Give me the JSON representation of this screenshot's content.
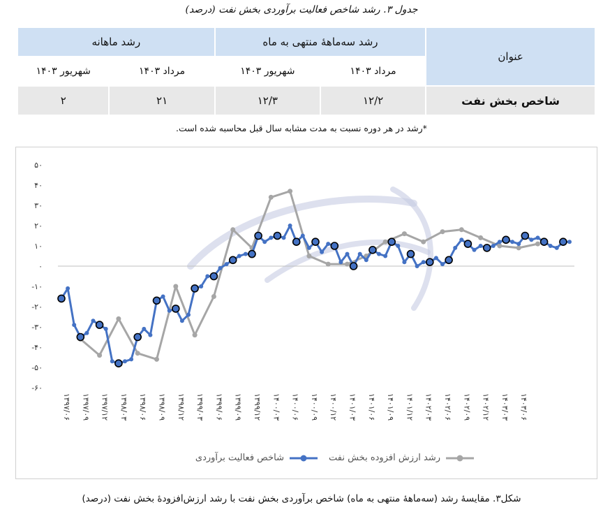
{
  "table": {
    "caption": "جدول ۳. رشد شاخص فعالیت برآوردی بخش نفت (درصد)",
    "col_title": "عنوان",
    "group1": "رشد سه‌ماههٔ منتهی به ماه",
    "group2": "رشد ماهانه",
    "sub": [
      "مرداد ۱۴۰۳",
      "شهریور ۱۴۰۳",
      "مرداد ۱۴۰۳",
      "شهریور ۱۴۰۳"
    ],
    "row_title": "شاخص بخش نفت",
    "values": [
      "۱۲/۲",
      "۱۲/۳",
      "۲۱",
      "۲"
    ],
    "note": "*رشد در هر دوره نسبت به مدت مشابه سال قبل محاسبه شده است."
  },
  "chart_data": {
    "type": "line",
    "ylim": [
      -60,
      50
    ],
    "y_ticks": [
      {
        "v": 50,
        "label": "۵۰"
      },
      {
        "v": 40,
        "label": "۴۰"
      },
      {
        "v": 30,
        "label": "۳۰"
      },
      {
        "v": 20,
        "label": "۲۰"
      },
      {
        "v": 10,
        "label": "۱۰"
      },
      {
        "v": 0,
        "label": "۰"
      },
      {
        "v": -10,
        "label": "-۱۰"
      },
      {
        "v": -20,
        "label": "-۲۰"
      },
      {
        "v": -30,
        "label": "-۳۰"
      },
      {
        "v": -40,
        "label": "-۴۰"
      },
      {
        "v": -50,
        "label": "-۵۰"
      },
      {
        "v": -60,
        "label": "-۶۰"
      }
    ],
    "x_tick_labels": [
      "۱۳۹۷/۰۶",
      "۱۳۹۷/۰۹",
      "۱۳۹۷/۱۲",
      "۱۳۹۸/۰۳",
      "۱۳۹۸/۰۶",
      "۱۳۹۸/۰۹",
      "۱۳۹۸/۱۲",
      "۱۳۹۹/۰۳",
      "۱۳۹۹/۰۶",
      "۱۳۹۹/۰۹",
      "۱۳۹۹/۱۲",
      "۱۴۰۰/۰۳",
      "۱۴۰۰/۰۶",
      "۱۴۰۰/۰۹",
      "۱۴۰۰/۱۲",
      "۱۴۰۱/۰۳",
      "۱۴۰۱/۰۶",
      "۱۴۰۱/۰۹",
      "۱۴۰۱/۱۲",
      "۱۴۰۲/۰۳",
      "۱۴۰۲/۰۶",
      "۱۴۰۲/۰۹",
      "۱۴۰۲/۱۲",
      "۱۴۰۳/۰۳",
      "۱۴۰۳/۰۶"
    ],
    "series": [
      {
        "name": "رشد ارزش افزوده بخش  نفت",
        "color": "#a6a6a6",
        "points": [
          [
            3,
            -36
          ],
          [
            6,
            -44
          ],
          [
            9,
            -26
          ],
          [
            12,
            -43
          ],
          [
            15,
            -46
          ],
          [
            18,
            -10
          ],
          [
            21,
            -34
          ],
          [
            24,
            -15
          ],
          [
            27,
            18
          ],
          [
            30,
            9
          ],
          [
            33,
            34
          ],
          [
            36,
            37
          ],
          [
            39,
            5
          ],
          [
            42,
            1
          ],
          [
            45,
            1
          ],
          [
            48,
            5
          ],
          [
            51,
            12
          ],
          [
            54,
            16
          ],
          [
            57,
            12
          ],
          [
            60,
            17
          ],
          [
            63,
            18
          ],
          [
            66,
            14
          ],
          [
            69,
            10
          ],
          [
            72,
            9
          ],
          [
            75,
            11
          ]
        ]
      },
      {
        "name": "شاخص فعالیت برآوردی",
        "color": "#4472c4",
        "values": [
          -16,
          -11,
          -29,
          -35,
          -33,
          -27,
          -29,
          -31,
          -47,
          -48,
          -47,
          -46,
          -35,
          -31,
          -34,
          -17,
          -15,
          -22,
          -21,
          -27,
          -24,
          -11,
          -10,
          -5,
          -5,
          -1,
          1,
          3,
          5,
          6,
          6,
          15,
          12,
          14,
          15,
          14,
          20,
          12,
          15,
          9,
          12,
          7,
          11,
          10,
          2,
          6,
          0,
          6,
          3,
          8,
          6,
          5,
          12,
          10,
          2,
          6,
          0,
          2,
          2,
          4,
          1,
          3,
          9,
          13,
          11,
          8,
          10,
          9,
          10,
          12,
          13,
          12,
          11,
          15,
          13,
          14,
          12,
          10,
          9,
          12,
          12
        ],
        "marker_indices": [
          0,
          3,
          6,
          9,
          12,
          15,
          18,
          21,
          24,
          27,
          30,
          31,
          34,
          37,
          40,
          43,
          46,
          49,
          52,
          55,
          58,
          61,
          64,
          67,
          70,
          73,
          76,
          79
        ]
      }
    ],
    "legend": [
      "رشد ارزش افزوده بخش  نفت",
      "شاخص فعالیت برآوردی"
    ]
  },
  "figure_caption": "شکل۳. مقایسهٔ رشد (سه‌ماههٔ منتهی به ماه) شاخص برآوردی بخش نفت با رشد ارزش‌افزودهٔ بخش نفت (درصد)"
}
